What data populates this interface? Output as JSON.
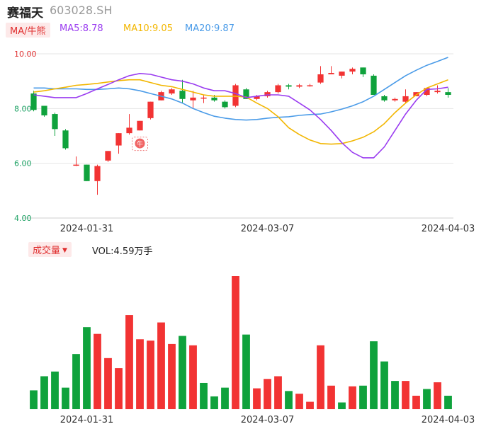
{
  "header": {
    "name": "赛福天",
    "code": "603028.SH"
  },
  "ma": {
    "tag": "MA/牛熊",
    "items": [
      {
        "label": "MA5:8.78",
        "color": "#9a3cf0"
      },
      {
        "label": "MA10:9.05",
        "color": "#f2b600"
      },
      {
        "label": "MA20:9.87",
        "color": "#4a9be8"
      }
    ]
  },
  "volume": {
    "tag": "成交量",
    "value_label": "VOL:4.59万手"
  },
  "colors": {
    "up": "#f23333",
    "down": "#0fa23c",
    "ma5": "#9a3cf0",
    "ma10": "#f2b600",
    "ma20": "#4a9be8"
  },
  "chart_data": [
    {
      "type": "candlestick",
      "ylim": [
        4.0,
        10.0
      ],
      "yticks": [
        "10.00",
        "8.00",
        "6.00",
        "4.00"
      ],
      "xticks": [
        "2024-01-31",
        "2024-03-07",
        "2024-04-03"
      ],
      "xtick_indices": [
        5,
        22,
        39
      ],
      "candles": [
        {
          "o": 8.55,
          "h": 8.65,
          "l": 7.9,
          "c": 7.95
        },
        {
          "o": 8.1,
          "h": 8.1,
          "l": 7.7,
          "c": 7.75
        },
        {
          "o": 7.8,
          "h": 7.85,
          "l": 7.0,
          "c": 7.25
        },
        {
          "o": 7.2,
          "h": 7.25,
          "l": 6.5,
          "c": 6.55
        },
        {
          "o": 5.95,
          "h": 6.25,
          "l": 5.9,
          "c": 5.95
        },
        {
          "o": 5.95,
          "h": 5.95,
          "l": 5.35,
          "c": 5.35
        },
        {
          "o": 5.35,
          "h": 5.95,
          "l": 4.85,
          "c": 5.9
        },
        {
          "o": 6.1,
          "h": 6.45,
          "l": 6.05,
          "c": 6.45
        },
        {
          "o": 6.65,
          "h": 7.1,
          "l": 6.35,
          "c": 7.1
        },
        {
          "o": 7.1,
          "h": 7.8,
          "l": 7.05,
          "c": 7.3
        },
        {
          "o": 7.2,
          "h": 7.55,
          "l": 7.2,
          "c": 7.55
        },
        {
          "o": 7.65,
          "h": 8.25,
          "l": 7.6,
          "c": 8.25
        },
        {
          "o": 8.3,
          "h": 8.65,
          "l": 8.3,
          "c": 8.6
        },
        {
          "o": 8.55,
          "h": 8.75,
          "l": 8.5,
          "c": 8.7
        },
        {
          "o": 8.65,
          "h": 9.05,
          "l": 8.2,
          "c": 8.35
        },
        {
          "o": 8.3,
          "h": 8.65,
          "l": 8.0,
          "c": 8.4
        },
        {
          "o": 8.4,
          "h": 8.5,
          "l": 8.2,
          "c": 8.4
        },
        {
          "o": 8.4,
          "h": 8.5,
          "l": 8.25,
          "c": 8.3
        },
        {
          "o": 8.25,
          "h": 8.3,
          "l": 8.0,
          "c": 8.05
        },
        {
          "o": 8.1,
          "h": 8.9,
          "l": 8.05,
          "c": 8.85
        },
        {
          "o": 8.7,
          "h": 8.75,
          "l": 8.35,
          "c": 8.35
        },
        {
          "o": 8.35,
          "h": 8.5,
          "l": 8.3,
          "c": 8.45
        },
        {
          "o": 8.45,
          "h": 8.65,
          "l": 8.4,
          "c": 8.6
        },
        {
          "o": 8.6,
          "h": 8.9,
          "l": 8.55,
          "c": 8.85
        },
        {
          "o": 8.85,
          "h": 8.9,
          "l": 8.7,
          "c": 8.8
        },
        {
          "o": 8.8,
          "h": 8.9,
          "l": 8.75,
          "c": 8.85
        },
        {
          "o": 8.85,
          "h": 8.9,
          "l": 8.8,
          "c": 8.85
        },
        {
          "o": 8.95,
          "h": 9.55,
          "l": 8.9,
          "c": 9.25
        },
        {
          "o": 9.25,
          "h": 9.55,
          "l": 9.25,
          "c": 9.3
        },
        {
          "o": 9.2,
          "h": 9.35,
          "l": 9.1,
          "c": 9.35
        },
        {
          "o": 9.35,
          "h": 9.5,
          "l": 9.25,
          "c": 9.45
        },
        {
          "o": 9.5,
          "h": 9.5,
          "l": 9.15,
          "c": 9.25
        },
        {
          "o": 9.2,
          "h": 9.25,
          "l": 8.5,
          "c": 8.5
        },
        {
          "o": 8.45,
          "h": 8.5,
          "l": 8.25,
          "c": 8.3
        },
        {
          "o": 8.3,
          "h": 8.4,
          "l": 8.25,
          "c": 8.35
        },
        {
          "o": 8.25,
          "h": 8.7,
          "l": 8.2,
          "c": 8.45
        },
        {
          "o": 8.45,
          "h": 8.6,
          "l": 8.45,
          "c": 8.6
        },
        {
          "o": 8.5,
          "h": 8.75,
          "l": 8.45,
          "c": 8.75
        },
        {
          "o": 8.6,
          "h": 8.85,
          "l": 8.55,
          "c": 8.65
        },
        {
          "o": 8.6,
          "h": 8.75,
          "l": 8.4,
          "c": 8.5
        }
      ],
      "ma5": [
        8.5,
        8.45,
        8.4,
        8.4,
        8.4,
        8.55,
        8.72,
        8.88,
        9.05,
        9.2,
        9.28,
        9.25,
        9.15,
        9.05,
        9.0,
        8.9,
        8.75,
        8.65,
        8.65,
        8.55,
        8.4,
        8.45,
        8.5,
        8.5,
        8.45,
        8.2,
        7.95,
        7.6,
        7.2,
        6.75,
        6.4,
        6.2,
        6.2,
        6.6,
        7.2,
        7.8,
        8.3,
        8.7,
        8.72,
        8.78
      ],
      "ma10": [
        8.6,
        8.65,
        8.72,
        8.78,
        8.85,
        8.88,
        8.92,
        8.97,
        9.02,
        9.05,
        9.05,
        8.95,
        8.85,
        8.8,
        8.7,
        8.6,
        8.5,
        8.45,
        8.45,
        8.45,
        8.42,
        8.2,
        8.0,
        7.7,
        7.3,
        7.05,
        6.85,
        6.72,
        6.7,
        6.72,
        6.82,
        6.95,
        7.15,
        7.45,
        7.85,
        8.2,
        8.5,
        8.75,
        8.9,
        9.05
      ],
      "ma20": [
        8.75,
        8.75,
        8.72,
        8.72,
        8.72,
        8.7,
        8.7,
        8.72,
        8.75,
        8.72,
        8.65,
        8.55,
        8.45,
        8.35,
        8.2,
        8.0,
        7.85,
        7.72,
        7.65,
        7.6,
        7.58,
        7.6,
        7.65,
        7.68,
        7.7,
        7.75,
        7.78,
        7.8,
        7.88,
        7.98,
        8.1,
        8.25,
        8.45,
        8.7,
        8.95,
        9.2,
        9.4,
        9.58,
        9.72,
        9.87
      ],
      "annotations": [
        "牛"
      ]
    },
    {
      "type": "bar",
      "series": [
        {
          "values": [
            1.4,
            2.45,
            2.8,
            1.6,
            4.1,
            6.1,
            5.6,
            3.8,
            3.05,
            7.0,
            5.2,
            5.1,
            6.45,
            4.85,
            5.45,
            4.75,
            1.95,
            0.95,
            1.6,
            9.9,
            5.55,
            1.55,
            2.25,
            2.45,
            1.35,
            1.15,
            0.55,
            4.75,
            1.75,
            0.5,
            1.7,
            1.75,
            5.05,
            3.55,
            2.1,
            2.1,
            1.0,
            1.5,
            2.0,
            1.0
          ],
          "colors": [
            "down",
            "down",
            "down",
            "down",
            "down",
            "down",
            "up",
            "up",
            "up",
            "up",
            "up",
            "up",
            "up",
            "up",
            "down",
            "up",
            "down",
            "down",
            "down",
            "up",
            "down",
            "up",
            "up",
            "up",
            "down",
            "up",
            "up",
            "up",
            "up",
            "down",
            "up",
            "down",
            "down",
            "down",
            "down",
            "up",
            "up",
            "down",
            "up",
            "down"
          ]
        }
      ],
      "xticks": [
        "2024-01-31",
        "2024-03-07",
        "2024-04-03"
      ],
      "xtick_indices": [
        5,
        22,
        39
      ]
    }
  ]
}
